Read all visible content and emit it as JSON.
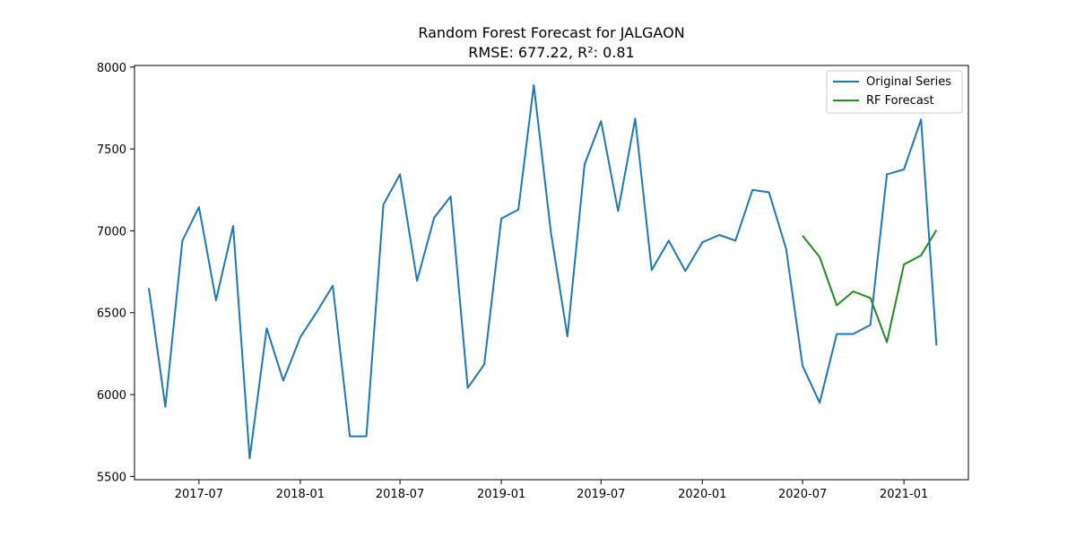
{
  "chart_data": {
    "type": "line",
    "title": "Random Forest Forecast for JALGAON",
    "subtitle": "RMSE: 677.22, R²: 0.81",
    "xlabel": "",
    "ylabel": "",
    "ylim": [
      5480,
      8010
    ],
    "xlim": [
      "2017-03-06",
      "2021-04-28"
    ],
    "x_ticks": [
      "2017-07",
      "2018-01",
      "2018-07",
      "2019-01",
      "2019-07",
      "2020-01",
      "2020-07",
      "2021-01"
    ],
    "y_ticks": [
      "5500",
      "6000",
      "6500",
      "7000",
      "7500",
      "8000"
    ],
    "grid": false,
    "legend_position": "top-right",
    "series": [
      {
        "name": "Original Series",
        "color": "#1f77b4",
        "x": [
          "2017-04-01",
          "2017-05-01",
          "2017-06-01",
          "2017-07-01",
          "2017-08-01",
          "2017-09-01",
          "2017-10-01",
          "2017-11-01",
          "2017-12-01",
          "2018-01-01",
          "2018-02-01",
          "2018-03-01",
          "2018-04-01",
          "2018-05-01",
          "2018-06-01",
          "2018-07-01",
          "2018-08-01",
          "2018-09-01",
          "2018-10-01",
          "2018-11-01",
          "2018-12-01",
          "2019-01-01",
          "2019-02-01",
          "2019-03-01",
          "2019-04-01",
          "2019-05-01",
          "2019-06-01",
          "2019-07-01",
          "2019-08-01",
          "2019-09-01",
          "2019-10-01",
          "2019-11-01",
          "2019-12-01",
          "2020-01-01",
          "2020-02-01",
          "2020-03-01",
          "2020-04-01",
          "2020-05-01",
          "2020-06-01",
          "2020-07-01",
          "2020-08-01",
          "2020-09-01",
          "2020-10-01",
          "2020-11-01",
          "2020-12-01",
          "2021-01-01",
          "2021-02-01",
          "2021-03-01"
        ],
        "values": [
          6650,
          5925,
          6940,
          7145,
          6575,
          7030,
          5610,
          6405,
          6085,
          6350,
          6510,
          6665,
          5745,
          5745,
          7160,
          7345,
          6695,
          7080,
          7210,
          6040,
          6185,
          7075,
          7130,
          7890,
          6990,
          6355,
          7405,
          7670,
          7120,
          7685,
          6760,
          6940,
          6755,
          6930,
          6975,
          6940,
          7250,
          7235,
          6890,
          6175,
          5950,
          6370,
          6370,
          6425,
          7345,
          7375,
          7680,
          6300
        ]
      },
      {
        "name": "RF Forecast",
        "color": "#228b22",
        "x": [
          "2020-07-01",
          "2020-08-01",
          "2020-09-01",
          "2020-10-01",
          "2020-11-01",
          "2020-12-01",
          "2021-01-01",
          "2021-02-01",
          "2021-03-01"
        ],
        "values": [
          6970,
          6840,
          6545,
          6630,
          6590,
          6320,
          6795,
          6850,
          7005
        ]
      }
    ]
  }
}
